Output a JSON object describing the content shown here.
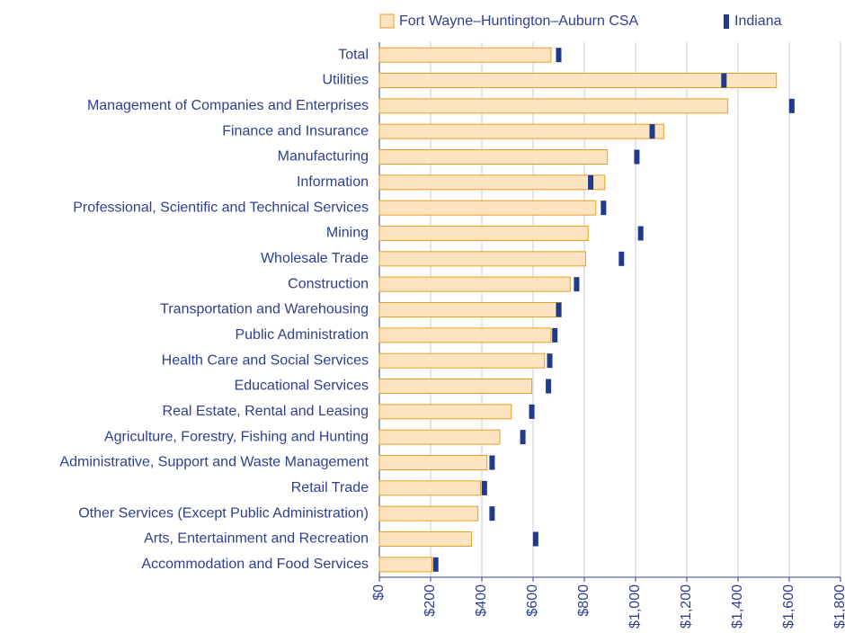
{
  "chart_data": {
    "type": "bar",
    "categories": [
      "Total",
      "Utilities",
      "Management of Companies and Enterprises",
      "Finance and Insurance",
      "Manufacturing",
      "Information",
      "Professional, Scientific and Technical Services",
      "Mining",
      "Wholesale Trade",
      "Construction",
      "Transportation and Warehousing",
      "Public Administration",
      "Health Care and Social Services",
      "Educational Services",
      "Real Estate, Rental and Leasing",
      "Agriculture, Forestry, Fishing and Hunting",
      "Administrative, Support and Waste Management",
      "Retail Trade",
      "Other Services (Except Public Administration)",
      "Arts, Entertainment and Recreation",
      "Accommodation and Food Services"
    ],
    "series": [
      {
        "name": "Fort Wayne–Huntington–Auburn CSA",
        "color": "#fde3c0",
        "stroke": "#e8a020",
        "values": [
          670,
          1550,
          1360,
          1110,
          890,
          880,
          845,
          815,
          805,
          745,
          710,
          670,
          645,
          595,
          515,
          470,
          420,
          395,
          385,
          360,
          205
        ]
      },
      {
        "name": "Indiana",
        "color": "#1f3a8c",
        "values": [
          700,
          1345,
          1610,
          1065,
          1005,
          825,
          875,
          1020,
          945,
          770,
          700,
          685,
          665,
          660,
          595,
          560,
          440,
          410,
          440,
          610,
          220
        ]
      }
    ],
    "xlim": [
      0,
      1800
    ],
    "xticks": [
      {
        "value": 0,
        "label": "$0"
      },
      {
        "value": 200,
        "label": "$200"
      },
      {
        "value": 400,
        "label": "$400"
      },
      {
        "value": 600,
        "label": "$600"
      },
      {
        "value": 800,
        "label": "$800"
      },
      {
        "value": 1000,
        "label": "$1,000"
      },
      {
        "value": 1200,
        "label": "$1,200"
      },
      {
        "value": 1400,
        "label": "$1,400"
      },
      {
        "value": 1600,
        "label": "$1,600"
      },
      {
        "value": 1800,
        "label": "$1,800"
      }
    ],
    "grid": true,
    "legend": "top"
  }
}
